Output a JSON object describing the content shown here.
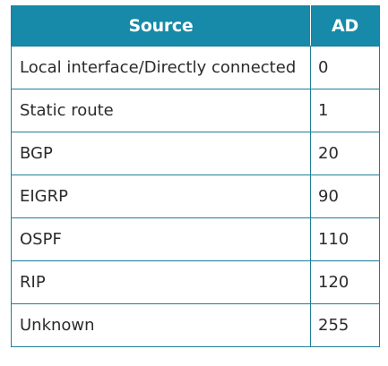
{
  "table": {
    "headers": [
      "Source",
      "AD"
    ],
    "rows": [
      {
        "source": "Local interface/Directly connected",
        "ad": "0"
      },
      {
        "source": "Static route",
        "ad": "1"
      },
      {
        "source": "BGP",
        "ad": "20"
      },
      {
        "source": "EIGRP",
        "ad": "90"
      },
      {
        "source": "OSPF",
        "ad": "110"
      },
      {
        "source": "RIP",
        "ad": "120"
      },
      {
        "source": "Unknown",
        "ad": "255"
      }
    ]
  },
  "colors": {
    "header_bg": "#168aa8",
    "border": "#1e7e9a",
    "header_text": "#ffffff",
    "body_text": "#2b2b2b"
  }
}
